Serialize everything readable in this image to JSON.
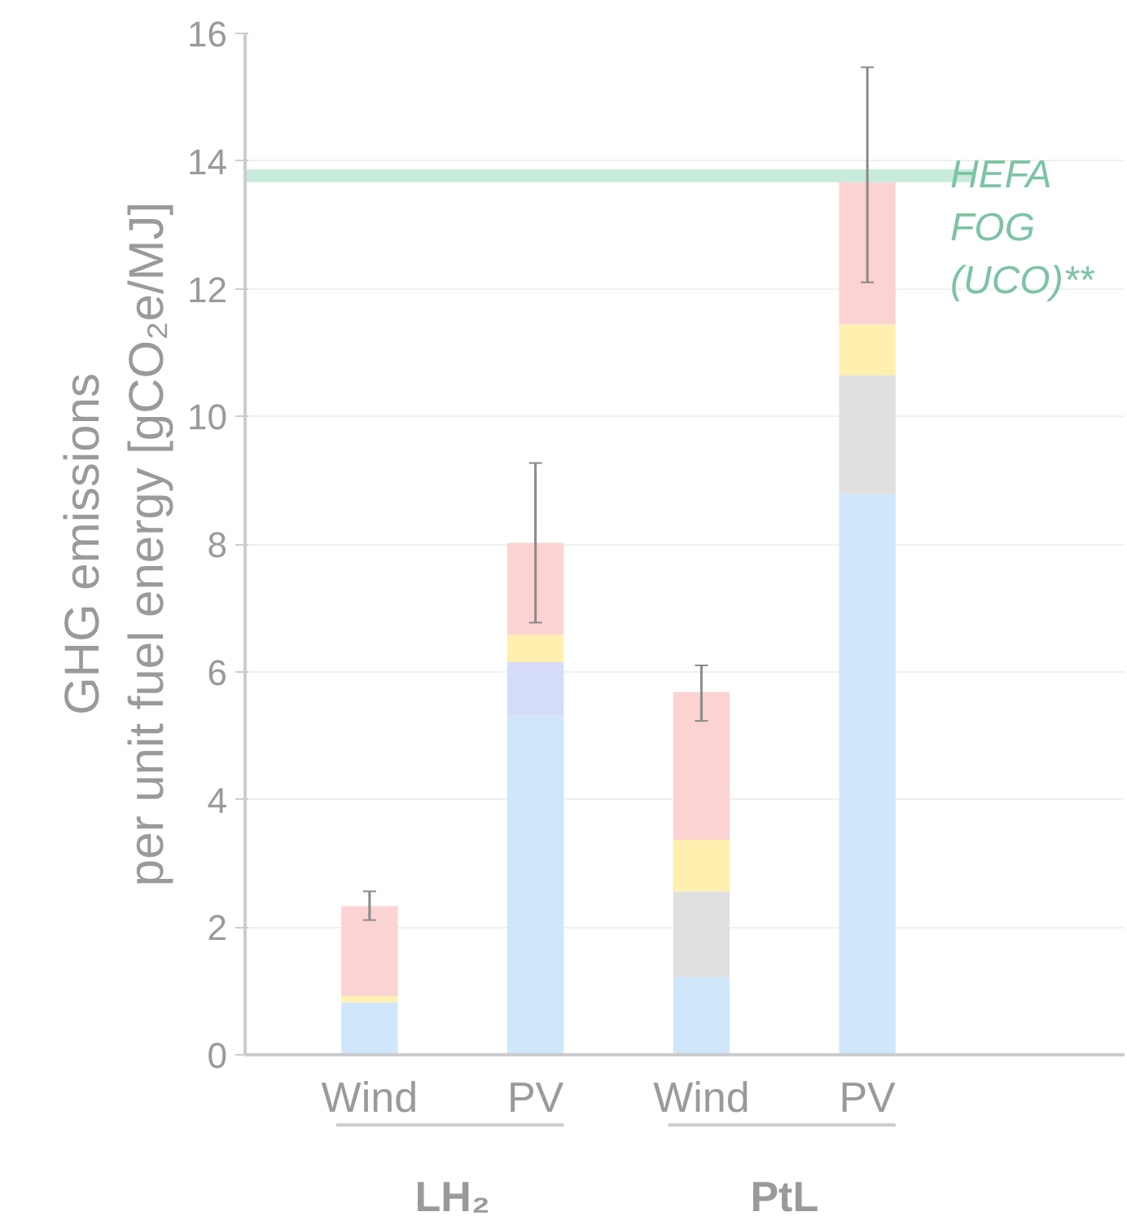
{
  "chart_data": {
    "type": "bar",
    "stacked": true,
    "ylabel": "GHG emissions\nper unit fuel energy [gCO₂e/MJ]",
    "categories": [
      "Wind",
      "PV",
      "Wind",
      "PV"
    ],
    "annotations": [
      "LH₂",
      "PtL"
    ],
    "series": [
      {
        "color": "#cfe6fb",
        "values": [
          0.82,
          5.31,
          1.22,
          8.78
        ]
      },
      {
        "color": "#d5dcf7",
        "values": [
          0,
          0.84,
          0,
          0
        ]
      },
      {
        "color": "#e0e0e0",
        "values": [
          0,
          0,
          1.34,
          1.86
        ]
      },
      {
        "color": "#fff0b0",
        "values": [
          0.1,
          0.43,
          0.81,
          0.8
        ]
      },
      {
        "color": "#fbd3d3",
        "values": [
          1.41,
          1.44,
          2.31,
          2.23
        ],
        "errors": [
          [
            2.11,
            2.56
          ],
          [
            6.77,
            9.27
          ],
          [
            5.23,
            6.1
          ],
          [
            12.1,
            15.47
          ]
        ]
      }
    ],
    "ref_lines": [
      {
        "axis": "y",
        "value": 13.77,
        "label": "HEFA\nFOG\n(UCO)**",
        "color": "#c8eadb"
      }
    ],
    "ylim": [
      0,
      16
    ],
    "yticks": [
      0,
      2,
      4,
      6,
      8,
      10,
      12,
      14,
      16
    ],
    "grid": "y"
  }
}
